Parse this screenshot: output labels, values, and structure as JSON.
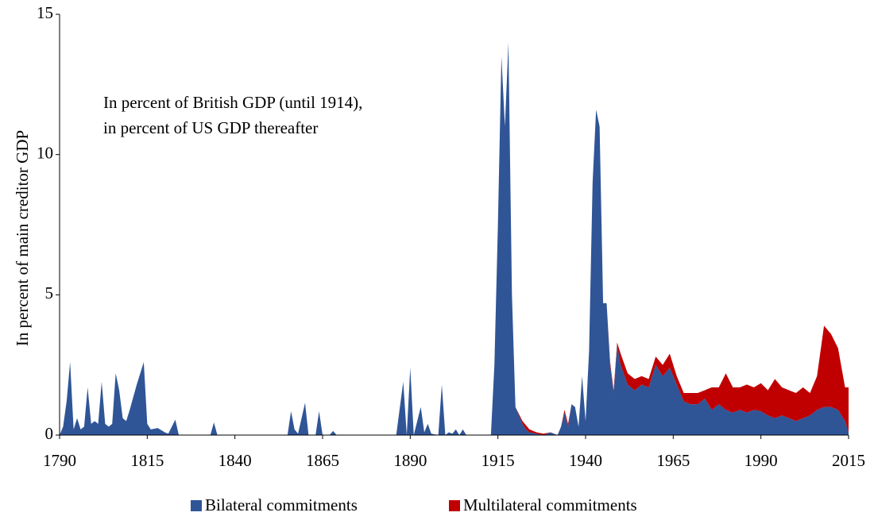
{
  "chart_data": {
    "type": "stacked_area",
    "y_label": "In percent of main creditor GDP",
    "annotation": [
      "In percent of British GDP (until 1914),",
      "in percent of US GDP thereafter"
    ],
    "x": [
      1790,
      1791,
      1792,
      1793,
      1794,
      1795,
      1796,
      1797,
      1798,
      1799,
      1800,
      1801,
      1802,
      1803,
      1804,
      1805,
      1806,
      1807,
      1808,
      1809,
      1810,
      1812,
      1814,
      1815,
      1816,
      1818,
      1820,
      1821,
      1823,
      1824,
      1833,
      1834,
      1835,
      1855,
      1856,
      1857,
      1858,
      1860,
      1861,
      1863,
      1864,
      1865,
      1867,
      1868,
      1869,
      1886,
      1888,
      1889,
      1890,
      1891,
      1893,
      1894,
      1895,
      1896,
      1898,
      1899,
      1900,
      1901,
      1902,
      1903,
      1904,
      1905,
      1906,
      1913,
      1914,
      1915,
      1916,
      1917,
      1918,
      1919,
      1920,
      1921,
      1922,
      1923,
      1924,
      1926,
      1928,
      1930,
      1932,
      1933,
      1934,
      1935,
      1936,
      1937,
      1938,
      1939,
      1940,
      1941,
      1942,
      1943,
      1944,
      1945,
      1946,
      1947,
      1948,
      1949,
      1950,
      1952,
      1954,
      1956,
      1958,
      1960,
      1962,
      1964,
      1966,
      1968,
      1970,
      1972,
      1974,
      1976,
      1978,
      1980,
      1982,
      1984,
      1986,
      1988,
      1990,
      1992,
      1994,
      1996,
      1998,
      2000,
      2002,
      2004,
      2006,
      2008,
      2010,
      2012,
      2014,
      2015
    ],
    "series": [
      {
        "name": "Bilateral commitments",
        "color": "#2f5597",
        "values": [
          0,
          0.3,
          1.2,
          2.6,
          0.2,
          0.6,
          0.2,
          0.3,
          1.7,
          0.4,
          0.5,
          0.4,
          1.9,
          0.4,
          0.3,
          0.4,
          2.2,
          1.6,
          0.6,
          0.5,
          0.9,
          1.8,
          2.6,
          0.4,
          0.2,
          0.25,
          0.1,
          0.05,
          0.55,
          0,
          0,
          0.45,
          0,
          0,
          0.85,
          0.2,
          0.05,
          1.15,
          0,
          0,
          0.85,
          0,
          0,
          0.15,
          0,
          0,
          1.9,
          0,
          2.4,
          0,
          1.0,
          0.1,
          0.4,
          0.05,
          0,
          1.8,
          0,
          0.1,
          0.05,
          0.2,
          0,
          0.2,
          0,
          0,
          2.5,
          7.5,
          13.5,
          11,
          14,
          5,
          1.0,
          0.7,
          0.4,
          0.2,
          0.1,
          0.05,
          0,
          0.1,
          0,
          0.3,
          0.8,
          0.3,
          1.1,
          1.0,
          0.3,
          2.1,
          0.5,
          3,
          9,
          11.6,
          11,
          4.7,
          4.7,
          2.5,
          1.5,
          3.2,
          2.5,
          1.8,
          1.6,
          1.8,
          1.7,
          2.5,
          2.1,
          2.4,
          1.8,
          1.2,
          1.1,
          1.1,
          1.3,
          0.9,
          1.1,
          0.9,
          0.8,
          0.9,
          0.8,
          0.9,
          0.85,
          0.7,
          0.6,
          0.7,
          0.6,
          0.5,
          0.6,
          0.7,
          0.9,
          1.0,
          1.0,
          0.9,
          0.5,
          0.1
        ]
      },
      {
        "name": "Multilateral commitments",
        "color": "#c00000",
        "values": [
          0,
          0,
          0,
          0,
          0,
          0,
          0,
          0,
          0,
          0,
          0,
          0,
          0,
          0,
          0,
          0,
          0,
          0,
          0,
          0,
          0,
          0,
          0,
          0,
          0,
          0,
          0,
          0,
          0,
          0,
          0,
          0,
          0,
          0,
          0,
          0,
          0,
          0,
          0,
          0,
          0,
          0,
          0,
          0,
          0,
          0,
          0,
          0,
          0,
          0,
          0,
          0,
          0,
          0,
          0,
          0,
          0,
          0,
          0,
          0,
          0,
          0,
          0,
          0,
          0,
          0,
          0,
          0,
          0,
          0,
          0,
          0.05,
          0.1,
          0.15,
          0.1,
          0.05,
          0.05,
          0,
          0,
          0,
          0.1,
          0.1,
          0,
          0,
          0,
          0,
          0,
          0,
          0,
          0,
          0,
          0,
          0,
          0.1,
          0.1,
          0.1,
          0.4,
          0.4,
          0.4,
          0.3,
          0.3,
          0.3,
          0.4,
          0.5,
          0.3,
          0.3,
          0.4,
          0.4,
          0.3,
          0.8,
          0.6,
          1.3,
          0.9,
          0.8,
          1.0,
          0.8,
          1.0,
          0.9,
          1.4,
          1.0,
          1.0,
          1.0,
          1.1,
          0.8,
          1.2,
          2.9,
          2.6,
          2.2,
          1.2,
          1.6
        ]
      }
    ],
    "xlim": [
      1790,
      2015
    ],
    "xticks": [
      1790,
      1815,
      1840,
      1865,
      1890,
      1915,
      1940,
      1965,
      1990,
      2015
    ],
    "ylim": [
      0,
      15
    ],
    "yticks": [
      0,
      5,
      10,
      15
    ],
    "grid": false,
    "legend": "bottom"
  }
}
